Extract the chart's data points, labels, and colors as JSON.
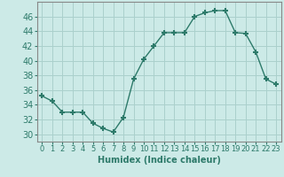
{
  "x": [
    0,
    1,
    2,
    3,
    4,
    5,
    6,
    7,
    8,
    9,
    10,
    11,
    12,
    13,
    14,
    15,
    16,
    17,
    18,
    19,
    20,
    21,
    22,
    23
  ],
  "y": [
    35.2,
    34.5,
    33.0,
    33.0,
    33.0,
    31.5,
    30.8,
    30.3,
    32.3,
    37.5,
    40.2,
    42.0,
    43.8,
    43.8,
    43.8,
    46.0,
    46.5,
    46.8,
    46.8,
    43.8,
    43.7,
    41.2,
    37.5,
    36.8
  ],
  "xlabel": "Humidex (Indice chaleur)",
  "line_color": "#2d7a6a",
  "marker": "+",
  "marker_size": 5,
  "marker_linewidth": 1.5,
  "bg_color": "#cceae7",
  "grid_color": "#aad0cc",
  "ylim": [
    29,
    48
  ],
  "xlim": [
    -0.5,
    23.5
  ],
  "yticks": [
    30,
    32,
    34,
    36,
    38,
    40,
    42,
    44,
    46
  ],
  "xticks": [
    0,
    1,
    2,
    3,
    4,
    5,
    6,
    7,
    8,
    9,
    10,
    11,
    12,
    13,
    14,
    15,
    16,
    17,
    18,
    19,
    20,
    21,
    22,
    23
  ],
  "ytick_fontsize": 7,
  "xtick_fontsize": 6,
  "xlabel_fontsize": 7,
  "linewidth": 1.0,
  "linestyle": "-"
}
